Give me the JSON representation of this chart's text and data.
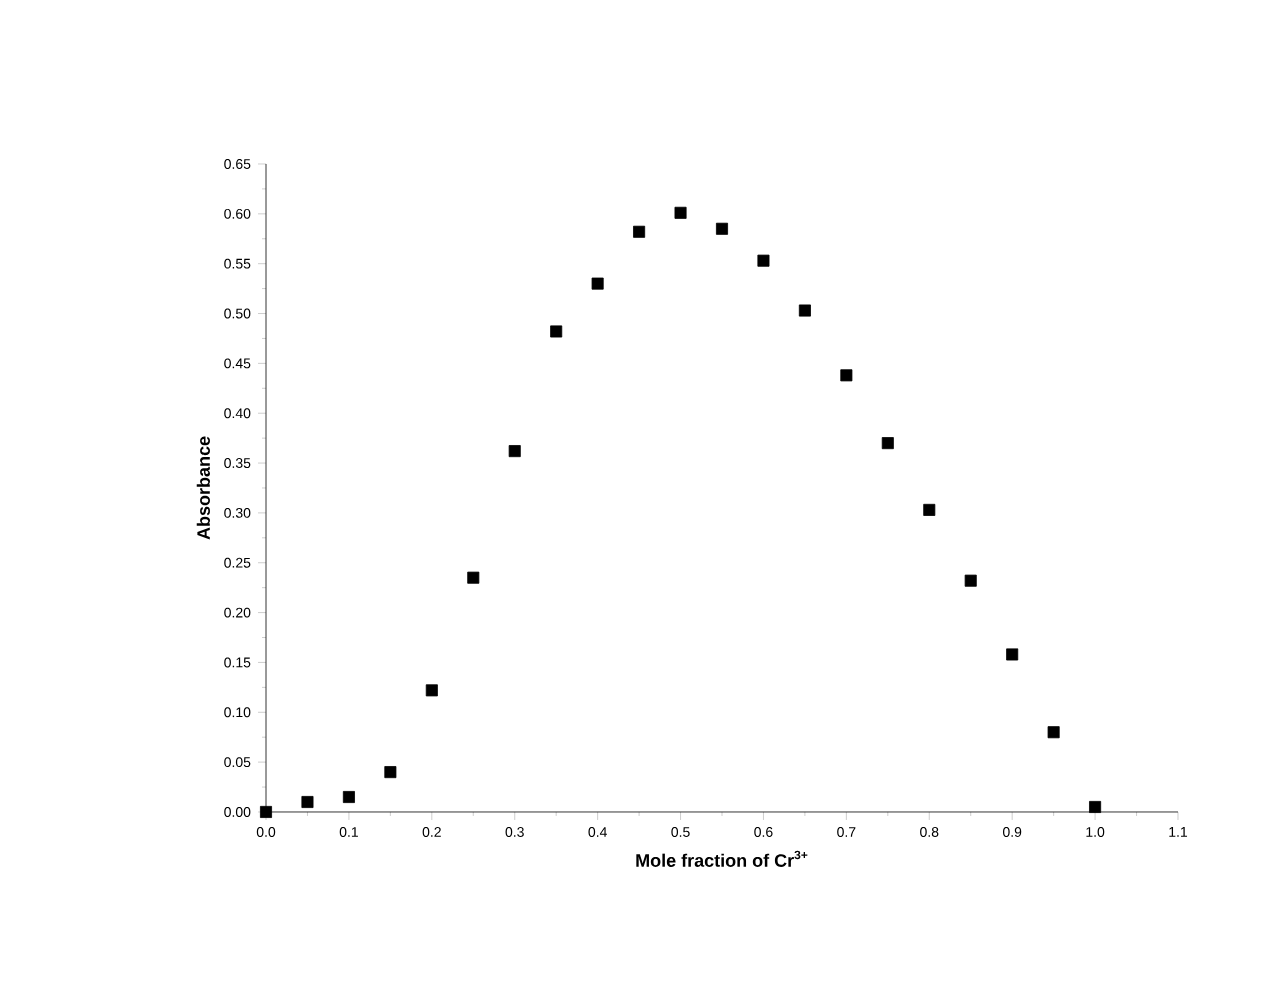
{
  "chart_data": {
    "type": "scatter",
    "xlabel": "Mole fraction of Cr$^{3+}$",
    "ylabel": "Absorbance",
    "x": [
      0.0,
      0.05,
      0.1,
      0.15,
      0.2,
      0.25,
      0.3,
      0.35,
      0.4,
      0.45,
      0.5,
      0.55,
      0.6,
      0.65,
      0.7,
      0.75,
      0.8,
      0.85,
      0.9,
      0.95,
      1.0
    ],
    "values": [
      0.0,
      0.01,
      0.015,
      0.04,
      0.122,
      0.235,
      0.362,
      0.482,
      0.53,
      0.582,
      0.601,
      0.585,
      0.553,
      0.503,
      0.438,
      0.37,
      0.303,
      0.232,
      0.158,
      0.08,
      0.005
    ],
    "color": "#000000",
    "marker": "square",
    "xlim": [
      0.0,
      1.1
    ],
    "ylim": [
      0.0,
      0.65
    ],
    "xticks": [
      {
        "value": 0,
        "label": "0.0"
      },
      0.1,
      0.2,
      0.3,
      0.4,
      0.5,
      0.6,
      0.7,
      0.8,
      0.9,
      {
        "value": 1,
        "label": "1.0"
      },
      1.1
    ],
    "yticks": [
      {
        "value": 0,
        "label": "0.00"
      },
      0.05,
      {
        "value": 0.1,
        "label": "0.10"
      },
      0.15,
      {
        "value": 0.2,
        "label": "0.20"
      },
      0.25,
      {
        "value": 0.3,
        "label": "0.30"
      },
      0.35,
      {
        "value": 0.4,
        "label": "0.40"
      },
      0.45,
      {
        "value": 0.5,
        "label": "0.50"
      },
      0.55,
      {
        "value": 0.6,
        "label": "0.60"
      },
      0.65
    ]
  }
}
